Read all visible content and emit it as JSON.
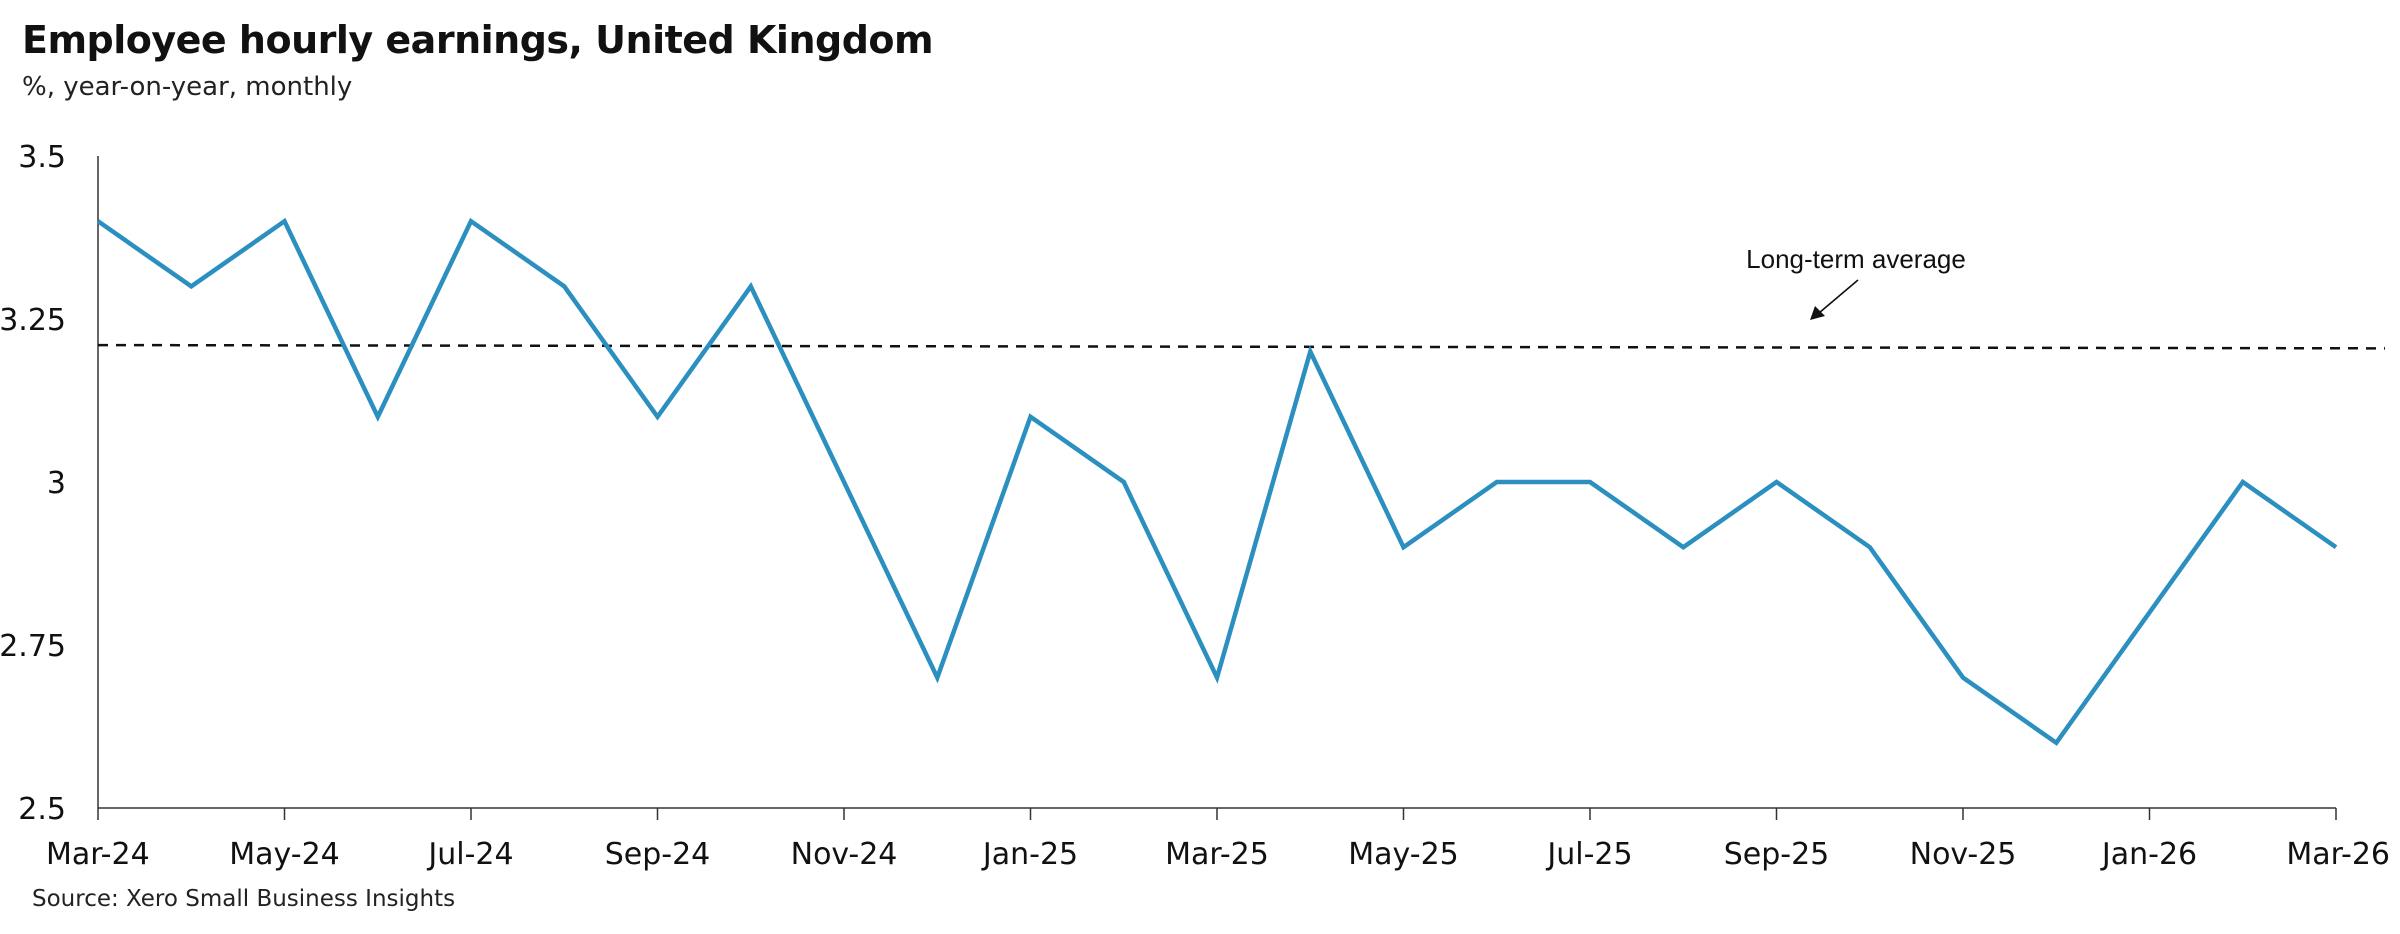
{
  "chart_data": {
    "type": "line",
    "title": "Employee hourly earnings, United Kingdom",
    "subtitle": "%, year-on-year, monthly",
    "source": "Source: Xero Small Business Insights",
    "xlabel": "",
    "ylabel": "",
    "ylim": [
      2.5,
      3.5
    ],
    "y_ticks": [
      "3.5",
      "3.25",
      "3",
      "2.75",
      "2.5"
    ],
    "y_tick_values": [
      3.5,
      3.25,
      3.0,
      2.75,
      2.5
    ],
    "x": [
      "Mar-24",
      "Apr-24",
      "May-24",
      "Jun-24",
      "Jul-24",
      "Aug-24",
      "Sep-24",
      "Oct-24",
      "Nov-24",
      "Dec-24",
      "Jan-25",
      "Feb-25",
      "Mar-25",
      "Apr-25",
      "May-25",
      "Jun-25",
      "Jul-25",
      "Aug-25",
      "Sep-25",
      "Oct-25",
      "Nov-25",
      "Dec-25",
      "Jan-26",
      "Feb-26",
      "Mar-26"
    ],
    "x_tick_labels": [
      "Mar-24",
      "May-24",
      "Jul-24",
      "Sep-24",
      "Nov-24",
      "Jan-25",
      "Mar-25",
      "May-25",
      "Jul-25",
      "Sep-25",
      "Nov-25",
      "Jan-26",
      "Mar-26"
    ],
    "series": [
      {
        "values": [
          3.4,
          3.3,
          3.4,
          3.1,
          3.4,
          3.3,
          3.1,
          3.3,
          3.0,
          2.7,
          3.1,
          3.0,
          2.7,
          3.2,
          2.9,
          3.0,
          3.0,
          2.9,
          3.0,
          2.9,
          2.7,
          2.6,
          2.8,
          3.0,
          2.9
        ],
        "color": "#2b8fbf"
      }
    ],
    "reference_line": {
      "label": "Long-term average",
      "start_value": 3.21,
      "end_value": 3.205,
      "style": "dashed",
      "color": "#111111"
    },
    "grid": false,
    "legend": "none"
  }
}
